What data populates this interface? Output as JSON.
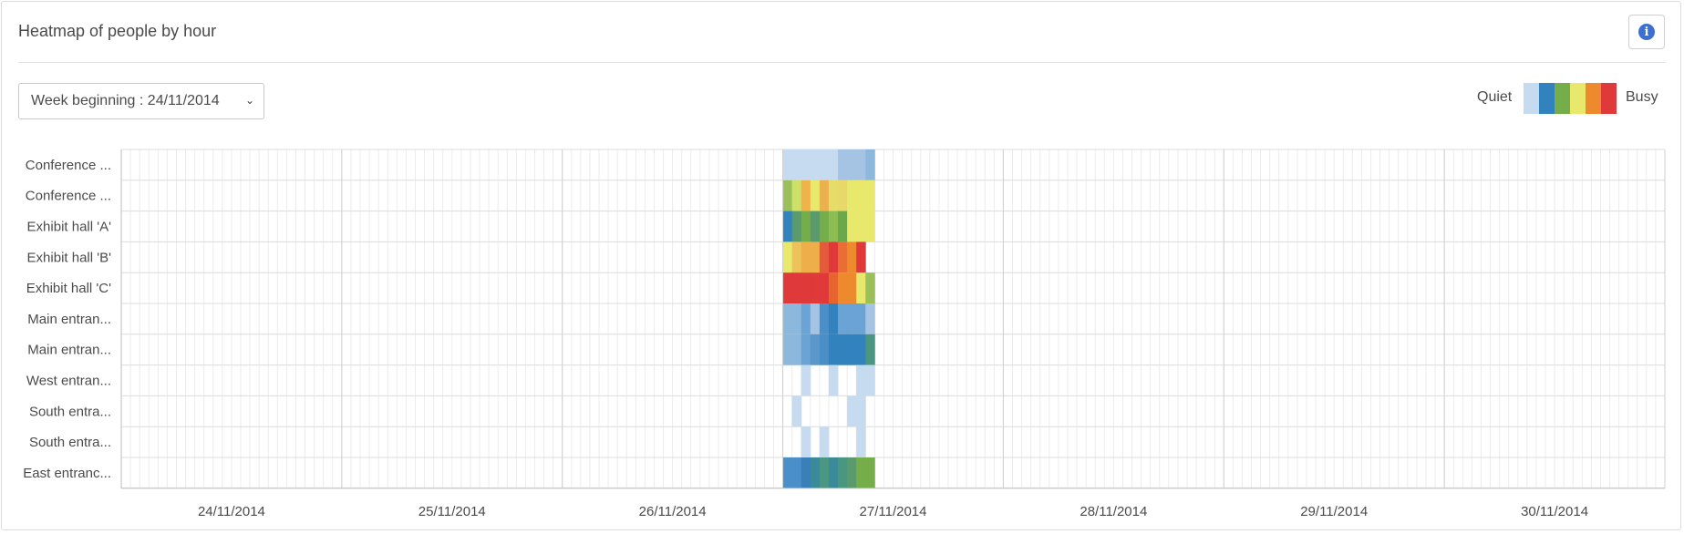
{
  "panel": {
    "title": "Heatmap of people by hour",
    "info_icon_glyph": "i",
    "week_select": {
      "value": "Week beginning : 24/11/2014",
      "chevron": "⌄"
    }
  },
  "legend": {
    "low_label": "Quiet",
    "high_label": "Busy",
    "colors": [
      "#c6dbef",
      "#3182bd",
      "#74ad49",
      "#e8e86c",
      "#ee8a2e",
      "#e0393a"
    ]
  },
  "chart_data": {
    "type": "heatmap",
    "title": "Heatmap of people by hour",
    "x_axis": {
      "tick_labels": [
        "24/11/2014",
        "25/11/2014",
        "26/11/2014",
        "27/11/2014",
        "28/11/2014",
        "29/11/2014",
        "30/11/2014"
      ],
      "hours_per_day": 24
    },
    "rows": [
      "Conference ...",
      "Conference ...",
      "Exhibit hall 'A'",
      "Exhibit hall 'B'",
      "Exhibit hall 'C'",
      "Main entran...",
      "Main entran...",
      "West entran...",
      "South entra...",
      "South entra...",
      "East entranc..."
    ],
    "data_day": "27/11/2014",
    "data_hours": [
      0,
      1,
      2,
      3,
      4,
      5,
      6,
      7,
      8,
      9
    ],
    "color_scale": [
      "#c6dbef",
      "#3182bd",
      "#74ad49",
      "#e8e86c",
      "#ee8a2e",
      "#e0393a"
    ],
    "cell_colors": [
      [
        "#c6dbef",
        "#c6dbef",
        "#c6dbef",
        "#c6dbef",
        "#c6dbef",
        "#c6dbef",
        "#a5c4e3",
        "#a5c4e3",
        "#a5c4e3",
        "#8db8de"
      ],
      [
        "#9bc05a",
        "#cde06a",
        "#f0b24a",
        "#e8e86c",
        "#ecb04e",
        "#e6dc6a",
        "#e8d86a",
        "#e8e86c",
        "#e8e86c",
        "#e8e86c"
      ],
      [
        "#3182bd",
        "#5a9a6c",
        "#74ad49",
        "#5a9a6c",
        "#74ad49",
        "#8cbc52",
        "#6aa84a",
        "#e8e86c",
        "#e8e86c",
        "#e8e86c"
      ],
      [
        "#e8e86c",
        "#eec25a",
        "#eeae4a",
        "#eeae4a",
        "#e55a3a",
        "#e0393a",
        "#ea6e34",
        "#ee8a2e",
        "#e0393a",
        null
      ],
      [
        "#e0393a",
        "#e0393a",
        "#e0393a",
        "#e0393a",
        "#e0393a",
        "#e8642e",
        "#ee8a2e",
        "#ee8a2e",
        "#e8e86c",
        "#9bc05a"
      ],
      [
        "#8db8de",
        "#8db8de",
        "#6aa3d4",
        "#a5c4e3",
        "#4a8fc8",
        "#3182bd",
        "#6aa3d4",
        "#6aa3d4",
        "#6aa3d4",
        "#a5c4e3"
      ],
      [
        "#8db8de",
        "#8db8de",
        "#6aa3d4",
        "#5a98cc",
        "#4a8fc8",
        "#3182bd",
        "#3182bd",
        "#3182bd",
        "#3182bd",
        "#4a9680"
      ],
      [
        null,
        null,
        "#c6dbef",
        null,
        null,
        "#c6dbef",
        null,
        null,
        "#c6dbef",
        "#c6dbef"
      ],
      [
        null,
        "#c6dbef",
        null,
        null,
        null,
        null,
        null,
        "#c6dbef",
        "#c6dbef",
        null
      ],
      [
        null,
        null,
        "#c6dbef",
        null,
        "#c6dbef",
        null,
        null,
        null,
        "#c6dbef",
        null
      ],
      [
        "#4a8fc8",
        "#4a8fc8",
        "#3a7fb8",
        "#3a8a9a",
        "#4a9680",
        "#3a8a9a",
        "#4a9680",
        "#5a9a6c",
        "#74ad49",
        "#74ad49"
      ]
    ]
  }
}
